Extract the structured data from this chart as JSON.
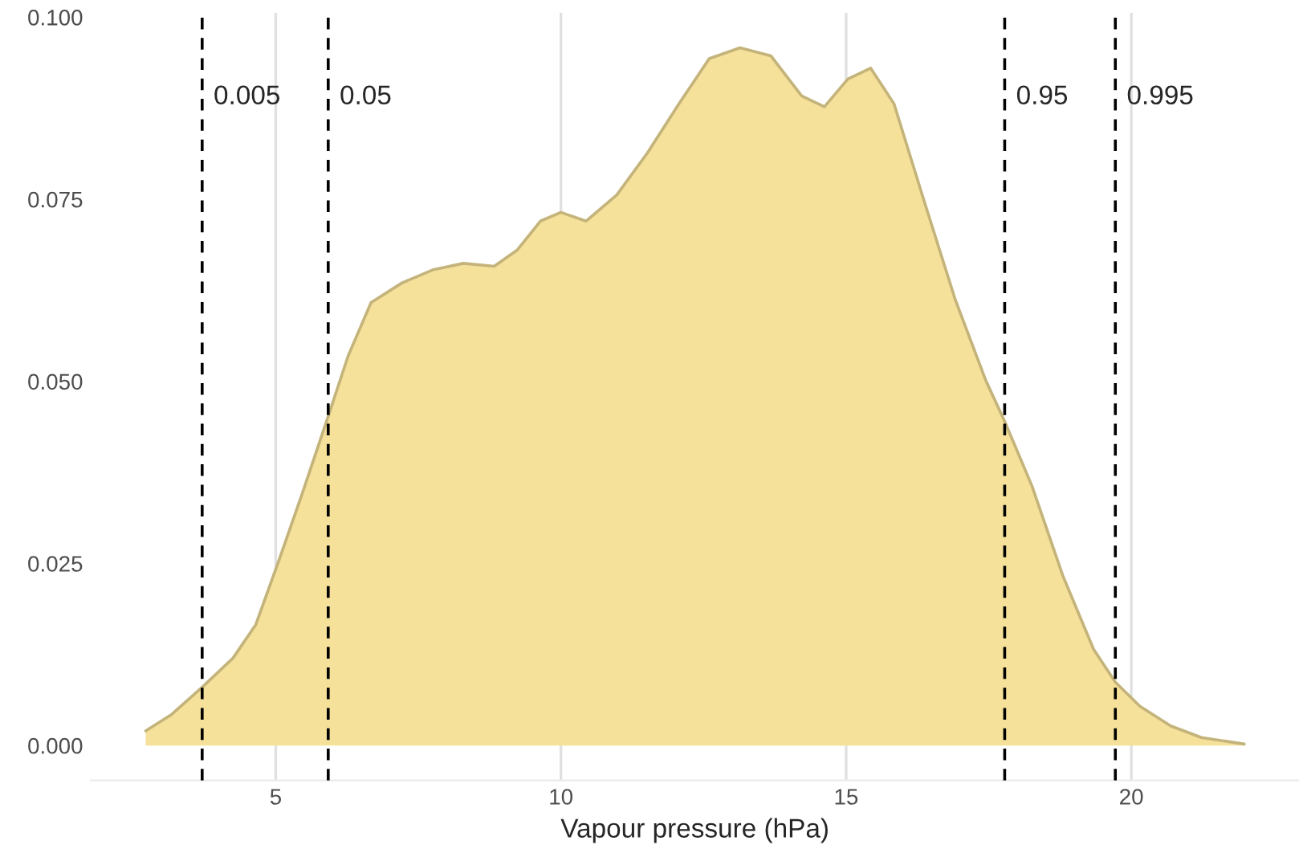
{
  "chart_data": {
    "type": "area",
    "xlabel": "Vapour pressure (hPa)",
    "x": [
      2.72,
      3.18,
      3.71,
      4.25,
      4.65,
      5.06,
      5.46,
      5.92,
      6.27,
      6.67,
      7.21,
      7.75,
      8.29,
      8.83,
      9.23,
      9.64,
      10.0,
      10.44,
      10.98,
      11.52,
      12.06,
      12.6,
      13.14,
      13.68,
      14.22,
      14.62,
      15.03,
      15.43,
      15.84,
      16.37,
      16.91,
      17.45,
      17.78,
      18.26,
      18.8,
      19.34,
      19.72,
      20.15,
      20.69,
      21.23,
      21.98
    ],
    "series": [
      {
        "color": "#f5e19a",
        "values": [
          0.002,
          0.0043,
          0.008,
          0.012,
          0.0166,
          0.0255,
          0.0345,
          0.0452,
          0.0535,
          0.0608,
          0.0635,
          0.0653,
          0.0662,
          0.0658,
          0.068,
          0.072,
          0.0732,
          0.072,
          0.0756,
          0.0814,
          0.088,
          0.0943,
          0.0958,
          0.0947,
          0.0892,
          0.0877,
          0.0915,
          0.093,
          0.0881,
          0.0747,
          0.0613,
          0.0501,
          0.0445,
          0.0356,
          0.0233,
          0.0132,
          0.0087,
          0.0054,
          0.0027,
          0.0011,
          0.0002
        ]
      }
    ],
    "xlim": [
      1.76,
      22.94
    ],
    "xticks": [
      5,
      10,
      15,
      20
    ],
    "ylim": [
      -0.0048,
      0.1006
    ],
    "yticks": [
      {
        "value": 0,
        "label": "0.000"
      },
      {
        "value": 0.025,
        "label": "0.025"
      },
      {
        "value": 0.05,
        "label": "0.050"
      },
      {
        "value": 0.075,
        "label": "0.075"
      },
      {
        "value": 0.1,
        "label": "0.100"
      }
    ],
    "grid": "x",
    "ref_lines": [
      {
        "axis": "x",
        "value": 3.71,
        "line_style": "dashed"
      },
      {
        "axis": "x",
        "value": 5.92,
        "line_style": "dashed"
      },
      {
        "axis": "x",
        "value": 17.78,
        "line_style": "dashed"
      },
      {
        "axis": "x",
        "value": 19.72,
        "line_style": "dashed"
      }
    ],
    "annotations": [
      {
        "text": "0.005",
        "x": 3.71,
        "y": 0.089
      },
      {
        "text": "0.05",
        "x": 5.92,
        "y": 0.089
      },
      {
        "text": "0.95",
        "x": 17.78,
        "y": 0.089
      },
      {
        "text": "0.995",
        "x": 19.72,
        "y": 0.089
      }
    ]
  }
}
